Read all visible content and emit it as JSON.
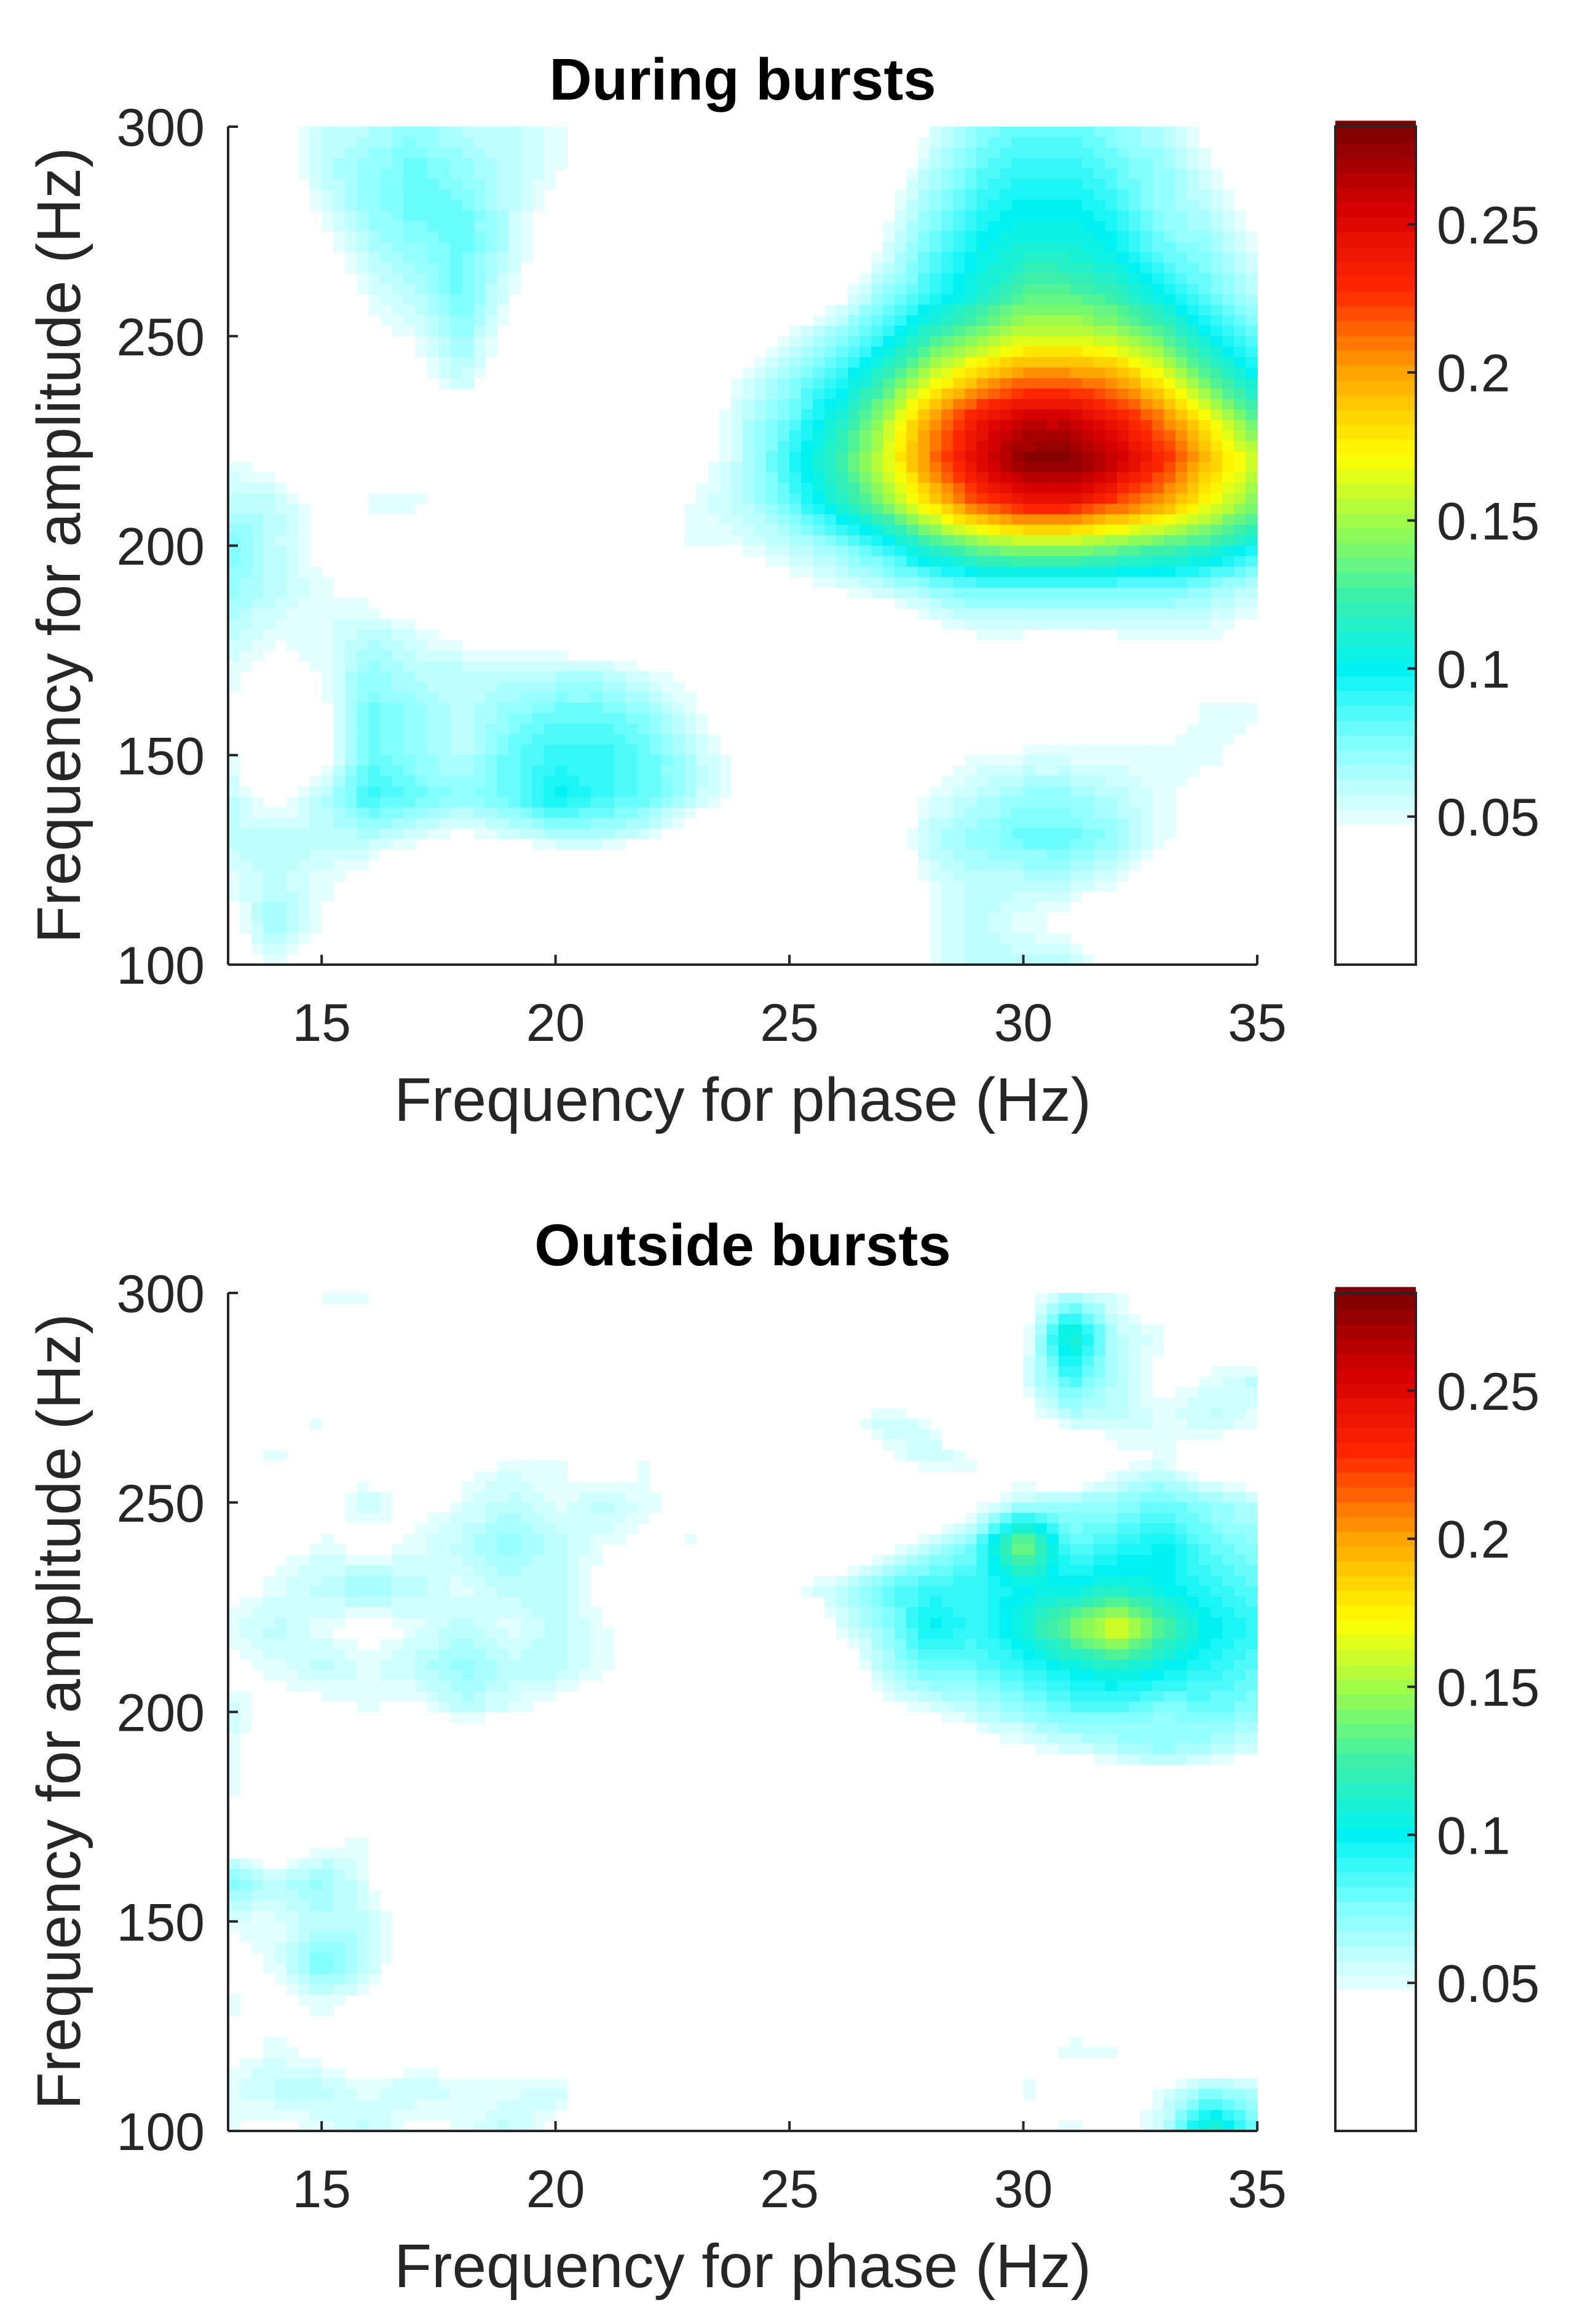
{
  "chart_data": [
    {
      "type": "heatmap",
      "title": "During bursts",
      "xlabel": "Frequency for phase (Hz)",
      "ylabel": "Frequency for amplitude (Hz)",
      "xlim": [
        13,
        35
      ],
      "ylim": [
        100,
        300
      ],
      "xticks": [
        "15",
        "20",
        "25",
        "30",
        "35"
      ],
      "yticks": [
        "100",
        "150",
        "200",
        "250",
        "300"
      ],
      "colorbar": {
        "range": [
          0,
          0.283
        ],
        "ticks": [
          "0.05",
          "0.1",
          "0.15",
          "0.2",
          "0.25"
        ],
        "colormap": "jet (white below 0.05)"
      },
      "x": [
        13,
        14,
        15,
        16,
        17,
        18,
        19,
        20,
        21,
        22,
        23,
        24,
        25,
        26,
        27,
        28,
        29,
        30,
        31,
        32,
        33,
        34,
        35
      ],
      "y": [
        300,
        290,
        280,
        270,
        260,
        250,
        240,
        230,
        220,
        210,
        200,
        190,
        180,
        170,
        160,
        150,
        140,
        130,
        120,
        110,
        100
      ],
      "z": [
        [
          0,
          0.03,
          0.06,
          0.06,
          0.07,
          0.06,
          0.06,
          0.05,
          0.03,
          0,
          0,
          0,
          0,
          0,
          0,
          0.05,
          0.07,
          0.08,
          0.08,
          0.07,
          0.06,
          0.04,
          0.02
        ],
        [
          0,
          0.03,
          0.06,
          0.07,
          0.08,
          0.07,
          0.06,
          0.05,
          0.03,
          0,
          0,
          0,
          0,
          0,
          0.03,
          0.06,
          0.08,
          0.09,
          0.09,
          0.08,
          0.07,
          0.05,
          0.03
        ],
        [
          0,
          0.02,
          0.05,
          0.07,
          0.08,
          0.08,
          0.06,
          0.04,
          0.02,
          0,
          0,
          0,
          0,
          0,
          0.04,
          0.07,
          0.09,
          0.1,
          0.1,
          0.09,
          0.07,
          0.06,
          0.04
        ],
        [
          0,
          0.02,
          0.04,
          0.06,
          0.07,
          0.08,
          0.06,
          0.03,
          0.01,
          0,
          0,
          0,
          0,
          0.02,
          0.05,
          0.08,
          0.1,
          0.11,
          0.11,
          0.1,
          0.08,
          0.07,
          0.05
        ],
        [
          0,
          0,
          0.03,
          0.05,
          0.06,
          0.08,
          0.05,
          0.02,
          0,
          0,
          0,
          0,
          0.02,
          0.04,
          0.07,
          0.09,
          0.11,
          0.13,
          0.13,
          0.12,
          0.1,
          0.08,
          0.06
        ],
        [
          0,
          0,
          0.02,
          0.04,
          0.05,
          0.07,
          0.04,
          0.02,
          0,
          0,
          0,
          0.02,
          0.05,
          0.07,
          0.09,
          0.12,
          0.14,
          0.16,
          0.16,
          0.15,
          0.13,
          0.1,
          0.08
        ],
        [
          0,
          0,
          0,
          0.02,
          0.04,
          0.06,
          0.03,
          0,
          0,
          0,
          0.02,
          0.05,
          0.07,
          0.09,
          0.12,
          0.16,
          0.19,
          0.21,
          0.21,
          0.2,
          0.17,
          0.13,
          0.1
        ],
        [
          0.02,
          0.02,
          0,
          0,
          0.02,
          0.03,
          0.02,
          0,
          0,
          0,
          0.03,
          0.06,
          0.08,
          0.11,
          0.15,
          0.2,
          0.24,
          0.26,
          0.26,
          0.24,
          0.21,
          0.17,
          0.13
        ],
        [
          0.05,
          0.04,
          0.03,
          0.03,
          0.04,
          0.04,
          0.03,
          0.02,
          0,
          0.02,
          0.04,
          0.06,
          0.09,
          0.12,
          0.16,
          0.21,
          0.25,
          0.28,
          0.28,
          0.26,
          0.23,
          0.19,
          0.16
        ],
        [
          0.06,
          0.06,
          0.04,
          0.05,
          0.05,
          0.04,
          0.04,
          0.03,
          0.02,
          0.04,
          0.05,
          0.06,
          0.08,
          0.11,
          0.14,
          0.18,
          0.22,
          0.24,
          0.24,
          0.22,
          0.2,
          0.17,
          0.14
        ],
        [
          0.08,
          0.06,
          0.04,
          0.03,
          0.03,
          0.02,
          0.02,
          0.02,
          0,
          0.03,
          0.05,
          0.05,
          0.06,
          0.07,
          0.09,
          0.12,
          0.14,
          0.15,
          0.15,
          0.14,
          0.13,
          0.12,
          0.1
        ],
        [
          0.07,
          0.06,
          0.05,
          0.04,
          0.02,
          0,
          0,
          0,
          0,
          0,
          0.02,
          0.03,
          0.04,
          0.05,
          0.06,
          0.07,
          0.08,
          0.08,
          0.08,
          0.08,
          0.08,
          0.07,
          0.06
        ],
        [
          0.06,
          0.05,
          0.05,
          0.06,
          0.05,
          0.04,
          0.03,
          0.03,
          0.02,
          0,
          0,
          0,
          0,
          0,
          0.02,
          0.04,
          0.05,
          0.05,
          0.05,
          0.05,
          0.05,
          0.05,
          0.04
        ],
        [
          0.05,
          0.04,
          0.05,
          0.07,
          0.06,
          0.06,
          0.06,
          0.06,
          0.06,
          0.05,
          0.04,
          0,
          0,
          0,
          0,
          0,
          0.03,
          0.03,
          0.02,
          0.03,
          0.04,
          0.04,
          0.04
        ],
        [
          0.05,
          0.02,
          0.04,
          0.08,
          0.07,
          0.06,
          0.07,
          0.08,
          0.08,
          0.07,
          0.05,
          0.03,
          0,
          0,
          0,
          0,
          0.02,
          0.03,
          0.03,
          0.03,
          0.04,
          0.05,
          0.05
        ],
        [
          0.05,
          0.02,
          0.04,
          0.08,
          0.07,
          0.06,
          0.08,
          0.09,
          0.09,
          0.08,
          0.06,
          0.04,
          0,
          0,
          0,
          0.03,
          0.05,
          0.05,
          0.05,
          0.05,
          0.05,
          0.05,
          0.04
        ],
        [
          0.06,
          0.04,
          0.06,
          0.09,
          0.08,
          0.07,
          0.08,
          0.1,
          0.09,
          0.08,
          0.06,
          0.04,
          0,
          0,
          0.02,
          0.05,
          0.06,
          0.07,
          0.07,
          0.06,
          0.05,
          0.04,
          0.03
        ],
        [
          0.06,
          0.06,
          0.06,
          0.06,
          0.05,
          0.04,
          0.05,
          0.06,
          0.06,
          0.05,
          0.03,
          0,
          0,
          0,
          0.03,
          0.06,
          0.07,
          0.08,
          0.08,
          0.07,
          0.05,
          0.03,
          0.02
        ],
        [
          0.05,
          0.06,
          0.05,
          0.04,
          0.02,
          0,
          0,
          0,
          0,
          0,
          0,
          0,
          0,
          0,
          0.03,
          0.05,
          0.06,
          0.06,
          0.06,
          0.05,
          0.03,
          0.02,
          0.02
        ],
        [
          0.04,
          0.07,
          0.05,
          0.02,
          0,
          0,
          0,
          0,
          0,
          0,
          0,
          0,
          0,
          0,
          0.02,
          0.05,
          0.06,
          0.05,
          0.04,
          0.02,
          0.02,
          0.02,
          0.03
        ],
        [
          0.03,
          0.05,
          0.03,
          0.02,
          0,
          0,
          0,
          0,
          0,
          0,
          0,
          0,
          0,
          0,
          0.02,
          0.05,
          0.06,
          0.06,
          0.06,
          0.04,
          0.04,
          0.03,
          0.04
        ]
      ]
    },
    {
      "type": "heatmap",
      "title": "Outside bursts",
      "xlabel": "Frequency for phase (Hz)",
      "ylabel": "Frequency for amplitude (Hz)",
      "xlim": [
        13,
        35
      ],
      "ylim": [
        100,
        300
      ],
      "xticks": [
        "15",
        "20",
        "25",
        "30",
        "35"
      ],
      "yticks": [
        "100",
        "150",
        "200",
        "250",
        "300"
      ],
      "colorbar": {
        "range": [
          0,
          0.283
        ],
        "ticks": [
          "0.05",
          "0.1",
          "0.15",
          "0.2",
          "0.25"
        ],
        "colormap": "jet (white below 0.05)"
      },
      "x": [
        13,
        14,
        15,
        16,
        17,
        18,
        19,
        20,
        21,
        22,
        23,
        24,
        25,
        26,
        27,
        28,
        29,
        30,
        31,
        32,
        33,
        34,
        35
      ],
      "y": [
        300,
        290,
        280,
        270,
        260,
        250,
        240,
        230,
        220,
        210,
        200,
        190,
        180,
        170,
        160,
        150,
        140,
        130,
        120,
        110,
        100
      ],
      "z": [
        [
          0,
          0,
          0.05,
          0.05,
          0.04,
          0,
          0,
          0.03,
          0,
          0,
          0,
          0,
          0,
          0,
          0,
          0,
          0,
          0.04,
          0.06,
          0.05,
          0.02,
          0,
          0
        ],
        [
          0.05,
          0.04,
          0.03,
          0.03,
          0.02,
          0,
          0,
          0,
          0.03,
          0,
          0,
          0,
          0,
          0,
          0.04,
          0,
          0,
          0.04,
          0.12,
          0.06,
          0.05,
          0.03,
          0
        ],
        [
          0.02,
          0,
          0.03,
          0.05,
          0,
          0,
          0,
          0.04,
          0,
          0,
          0,
          0,
          0.04,
          0,
          0,
          0,
          0,
          0.05,
          0.09,
          0.06,
          0.04,
          0.05,
          0.06
        ],
        [
          0,
          0.04,
          0.05,
          0.03,
          0,
          0,
          0.03,
          0,
          0,
          0,
          0,
          0,
          0.03,
          0.04,
          0.06,
          0.05,
          0,
          0.04,
          0.06,
          0.06,
          0.05,
          0.06,
          0.05
        ],
        [
          0.05,
          0.05,
          0.04,
          0.03,
          0,
          0.04,
          0.05,
          0.05,
          0.03,
          0.05,
          0,
          0,
          0.04,
          0,
          0.04,
          0.06,
          0.05,
          0.03,
          0,
          0.04,
          0.05,
          0.03,
          0.02
        ],
        [
          0,
          0.02,
          0.04,
          0.06,
          0.04,
          0.05,
          0.06,
          0.05,
          0.06,
          0.05,
          0.04,
          0,
          0,
          0.05,
          0,
          0,
          0.04,
          0.06,
          0.07,
          0.07,
          0.08,
          0.07,
          0.06
        ],
        [
          0.03,
          0.04,
          0.05,
          0.04,
          0.05,
          0.06,
          0.07,
          0.06,
          0.05,
          0.04,
          0.05,
          0,
          0,
          0,
          0.04,
          0.06,
          0.08,
          0.15,
          0.08,
          0.09,
          0.1,
          0.08,
          0.07
        ],
        [
          0.04,
          0.05,
          0.06,
          0.07,
          0.06,
          0.05,
          0.06,
          0.06,
          0.04,
          0,
          0,
          0,
          0.05,
          0.06,
          0.08,
          0.09,
          0.09,
          0.1,
          0.1,
          0.11,
          0.1,
          0.09,
          0.08
        ],
        [
          0.05,
          0.06,
          0.05,
          0.04,
          0.05,
          0.06,
          0.05,
          0.06,
          0.05,
          0.04,
          0,
          0,
          0,
          0.05,
          0.07,
          0.1,
          0.09,
          0.11,
          0.14,
          0.17,
          0.13,
          0.1,
          0.09
        ],
        [
          0.04,
          0.05,
          0.06,
          0.05,
          0.06,
          0.07,
          0.06,
          0.06,
          0.05,
          0.04,
          0,
          0,
          0,
          0.03,
          0.06,
          0.08,
          0.08,
          0.09,
          0.1,
          0.11,
          0.1,
          0.09,
          0.08
        ],
        [
          0.06,
          0.04,
          0.04,
          0.05,
          0.04,
          0.06,
          0.05,
          0.04,
          0.03,
          0.04,
          0,
          0,
          0,
          0,
          0.04,
          0.05,
          0.06,
          0.07,
          0.08,
          0.08,
          0.07,
          0.08,
          0.07
        ],
        [
          0.05,
          0.03,
          0.02,
          0,
          0,
          0,
          0,
          0.03,
          0,
          0,
          0,
          0,
          0,
          0,
          0,
          0,
          0.03,
          0.04,
          0.05,
          0.06,
          0.07,
          0.06,
          0.05
        ],
        [
          0.05,
          0.03,
          0,
          0,
          0.03,
          0,
          0,
          0,
          0,
          0,
          0,
          0,
          0,
          0,
          0,
          0,
          0,
          0,
          0,
          0,
          0,
          0,
          0
        ],
        [
          0.03,
          0.02,
          0.04,
          0.05,
          0,
          0,
          0,
          0,
          0,
          0,
          0,
          0,
          0,
          0,
          0,
          0,
          0,
          0,
          0.03,
          0.03,
          0,
          0,
          0
        ],
        [
          0.08,
          0.06,
          0.07,
          0.05,
          0,
          0.03,
          0,
          0,
          0,
          0.03,
          0,
          0,
          0,
          0,
          0,
          0,
          0,
          0,
          0,
          0,
          0,
          0,
          0
        ],
        [
          0.05,
          0.05,
          0.06,
          0.06,
          0.04,
          0,
          0,
          0,
          0,
          0,
          0,
          0,
          0,
          0,
          0,
          0,
          0,
          0,
          0,
          0,
          0,
          0,
          0
        ],
        [
          0.04,
          0.05,
          0.08,
          0.06,
          0.03,
          0,
          0,
          0,
          0,
          0.05,
          0,
          0,
          0,
          0,
          0,
          0,
          0,
          0,
          0,
          0,
          0,
          0,
          0
        ],
        [
          0.05,
          0.04,
          0.05,
          0.04,
          0,
          0,
          0.03,
          0,
          0,
          0,
          0,
          0,
          0,
          0,
          0,
          0.04,
          0,
          0,
          0.04,
          0,
          0,
          0,
          0
        ],
        [
          0.04,
          0.05,
          0.04,
          0.03,
          0.03,
          0.04,
          0.04,
          0,
          0,
          0,
          0,
          0.03,
          0,
          0,
          0,
          0,
          0,
          0.04,
          0.05,
          0.05,
          0,
          0,
          0
        ],
        [
          0.05,
          0.06,
          0.06,
          0.05,
          0.06,
          0.05,
          0.05,
          0.06,
          0.03,
          0,
          0,
          0,
          0,
          0,
          0,
          0,
          0,
          0.05,
          0.04,
          0.03,
          0.05,
          0.07,
          0.06
        ],
        [
          0.05,
          0.04,
          0.05,
          0.06,
          0.04,
          0.05,
          0.06,
          0.04,
          0,
          0,
          0,
          0,
          0,
          0,
          0,
          0,
          0,
          0.04,
          0.05,
          0.04,
          0.06,
          0.12,
          0.08
        ]
      ]
    }
  ]
}
